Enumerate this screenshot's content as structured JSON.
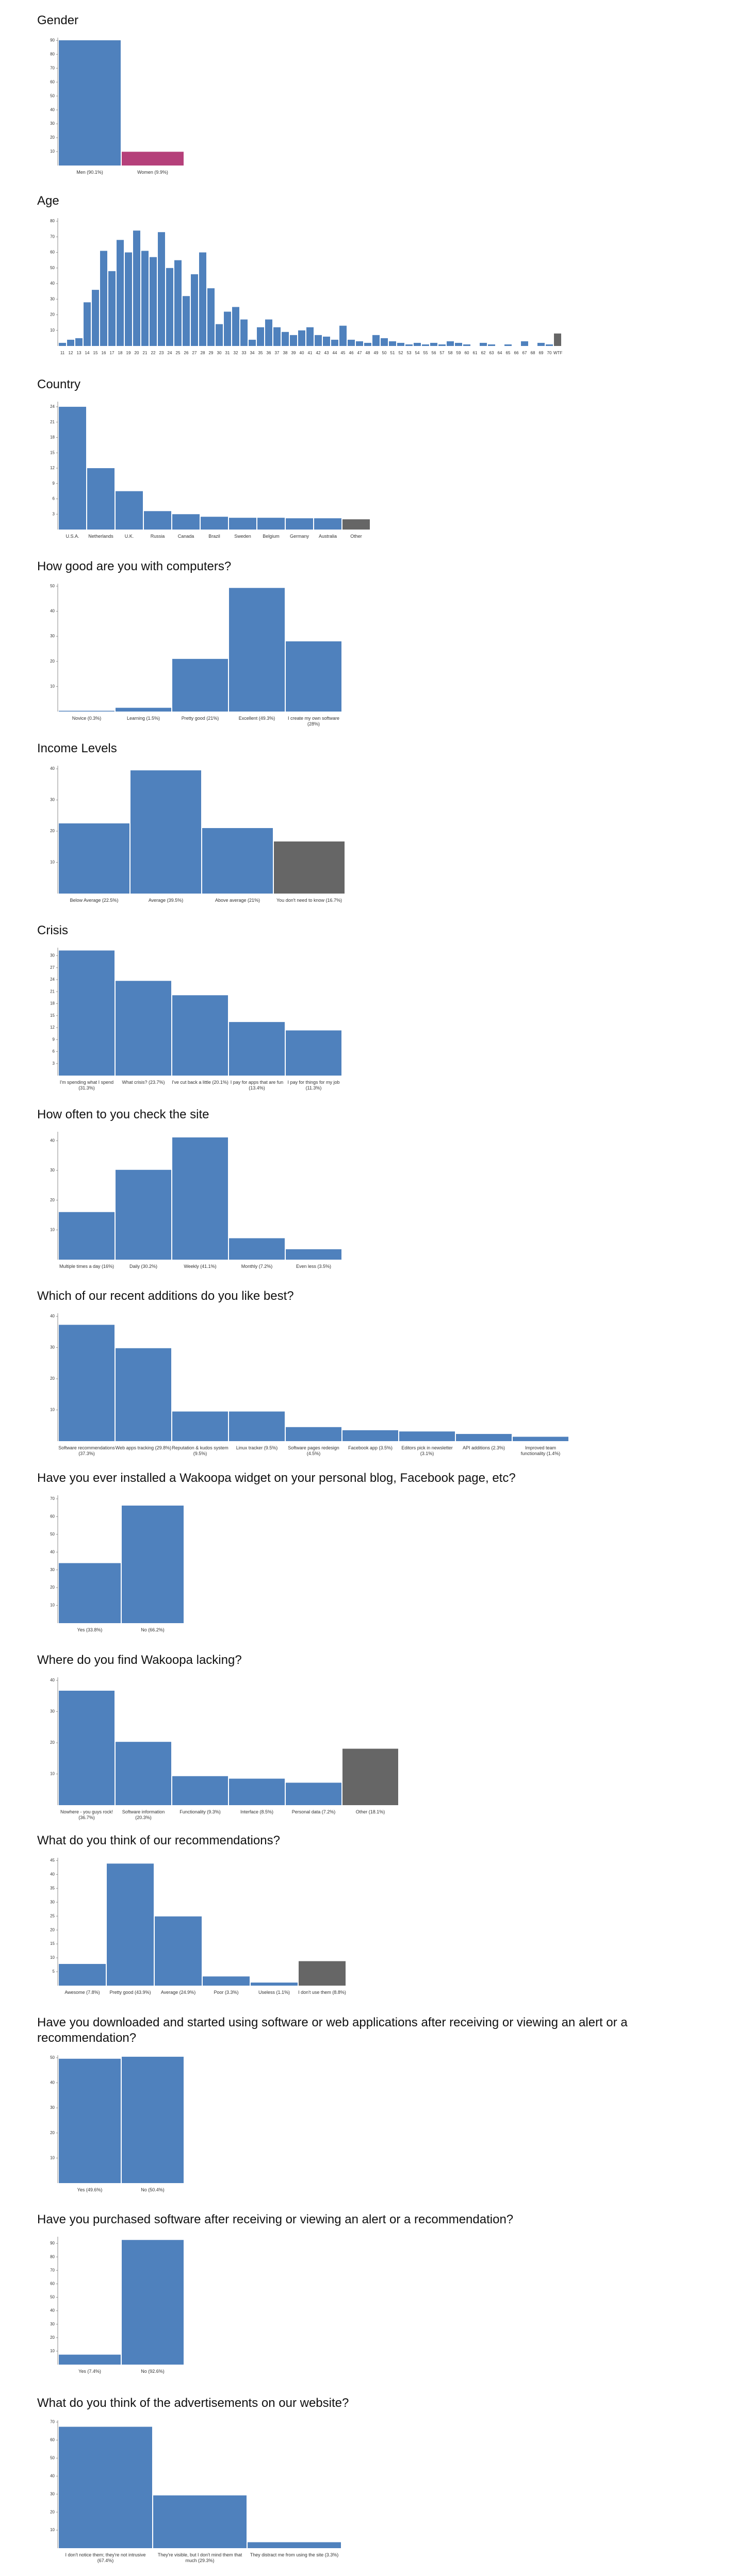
{
  "chart_data": [
    {
      "type": "bar",
      "title": "Gender",
      "categories": [
        "Men (90.1%)",
        "Women (9.9%)"
      ],
      "values": [
        90.1,
        9.9
      ],
      "colors": [
        "#4f81bd",
        "#b5407a"
      ],
      "ylim": [
        0,
        92
      ],
      "yticks": [
        10,
        20,
        30,
        40,
        50,
        60,
        70,
        80,
        90
      ]
    },
    {
      "type": "bar",
      "title": "Age",
      "categories": [
        "11",
        "12",
        "13",
        "14",
        "15",
        "16",
        "17",
        "18",
        "19",
        "20",
        "21",
        "22",
        "23",
        "24",
        "25",
        "26",
        "27",
        "28",
        "29",
        "30",
        "31",
        "32",
        "33",
        "34",
        "35",
        "36",
        "37",
        "38",
        "39",
        "40",
        "41",
        "42",
        "43",
        "44",
        "45",
        "46",
        "47",
        "48",
        "49",
        "50",
        "51",
        "52",
        "53",
        "54",
        "55",
        "56",
        "57",
        "58",
        "59",
        "60",
        "61",
        "62",
        "63",
        "64",
        "65",
        "66",
        "67",
        "68",
        "69",
        "70",
        "WTF"
      ],
      "values": [
        2,
        4,
        5,
        28,
        36,
        61,
        48,
        68,
        60,
        74,
        61,
        57,
        73,
        50,
        55,
        32,
        46,
        60,
        37,
        14,
        22,
        25,
        17,
        4,
        12,
        17,
        12,
        9,
        7,
        10,
        12,
        7,
        6,
        4,
        13,
        4,
        3,
        2,
        7,
        5,
        3,
        2,
        1,
        2,
        1,
        2,
        1,
        3,
        2,
        1,
        0,
        2,
        1,
        0,
        1,
        0,
        3,
        0,
        2,
        1,
        8
      ],
      "colors": [
        "#4f81bd",
        "#4f81bd",
        "#4f81bd",
        "#4f81bd",
        "#4f81bd",
        "#4f81bd",
        "#4f81bd",
        "#4f81bd",
        "#4f81bd",
        "#4f81bd",
        "#4f81bd",
        "#4f81bd",
        "#4f81bd",
        "#4f81bd",
        "#4f81bd",
        "#4f81bd",
        "#4f81bd",
        "#4f81bd",
        "#4f81bd",
        "#4f81bd",
        "#4f81bd",
        "#4f81bd",
        "#4f81bd",
        "#4f81bd",
        "#4f81bd",
        "#4f81bd",
        "#4f81bd",
        "#4f81bd",
        "#4f81bd",
        "#4f81bd",
        "#4f81bd",
        "#4f81bd",
        "#4f81bd",
        "#4f81bd",
        "#4f81bd",
        "#4f81bd",
        "#4f81bd",
        "#4f81bd",
        "#4f81bd",
        "#4f81bd",
        "#4f81bd",
        "#4f81bd",
        "#4f81bd",
        "#4f81bd",
        "#4f81bd",
        "#4f81bd",
        "#4f81bd",
        "#4f81bd",
        "#4f81bd",
        "#4f81bd",
        "#4f81bd",
        "#4f81bd",
        "#4f81bd",
        "#4f81bd",
        "#4f81bd",
        "#4f81bd",
        "#4f81bd",
        "#4f81bd",
        "#4f81bd",
        "#4f81bd",
        "#666666"
      ],
      "ylim": [
        0,
        82
      ],
      "yticks": [
        10,
        20,
        30,
        40,
        50,
        60,
        70,
        80
      ]
    },
    {
      "type": "bar",
      "title": "Country",
      "categories": [
        "U.S.A.",
        "Netherlands",
        "U.K.",
        "Russia",
        "Canada",
        "Brazil",
        "Sweden",
        "Belgium",
        "Germany",
        "Australia",
        "Other"
      ],
      "values": [
        24,
        12,
        7.5,
        3.6,
        3,
        2.5,
        2.3,
        2.3,
        2.2,
        2.2,
        2
      ],
      "colors": [
        "#4f81bd",
        "#4f81bd",
        "#4f81bd",
        "#4f81bd",
        "#4f81bd",
        "#4f81bd",
        "#4f81bd",
        "#4f81bd",
        "#4f81bd",
        "#4f81bd",
        "#666666"
      ],
      "ylim": [
        0,
        25
      ],
      "yticks": [
        3,
        6,
        9,
        12,
        15,
        18,
        21,
        24
      ]
    },
    {
      "type": "bar",
      "title": "How good are you with computers?",
      "categories": [
        "Novice (0.3%)",
        "Learning (1.5%)",
        "Pretty good (21%)",
        "Excellent (49.3%)",
        "I create my own software (28%)"
      ],
      "values": [
        0.3,
        1.5,
        21,
        49.3,
        28
      ],
      "colors": [
        "#4f81bd",
        "#4f81bd",
        "#4f81bd",
        "#4f81bd",
        "#4f81bd"
      ],
      "ylim": [
        0,
        51
      ],
      "yticks": [
        10,
        20,
        30,
        40,
        50
      ]
    },
    {
      "type": "bar",
      "title": "Income Levels",
      "categories": [
        "Below Average (22.5%)",
        "Average (39.5%)",
        "Above average (21%)",
        "You don't need to know (16.7%)"
      ],
      "values": [
        22.5,
        39.5,
        21,
        16.7
      ],
      "colors": [
        "#4f81bd",
        "#4f81bd",
        "#4f81bd",
        "#666666"
      ],
      "ylim": [
        0,
        41
      ],
      "yticks": [
        10,
        20,
        30,
        40
      ]
    },
    {
      "type": "bar",
      "title": "Crisis",
      "categories": [
        "I'm spending what I spend (31.3%)",
        "What crisis? (23.7%)",
        "I've cut back a little (20.1%)",
        "I pay for apps that are fun (13.4%)",
        "I pay for things for my job (11.3%)"
      ],
      "values": [
        31.3,
        23.7,
        20.1,
        13.4,
        11.3
      ],
      "colors": [
        "#4f81bd",
        "#4f81bd",
        "#4f81bd",
        "#4f81bd",
        "#4f81bd"
      ],
      "ylim": [
        0,
        32
      ],
      "yticks": [
        3,
        6,
        9,
        12,
        15,
        18,
        21,
        24,
        27,
        30
      ]
    },
    {
      "type": "bar",
      "title": "How often to you check the site",
      "categories": [
        "Multiple times a day (16%)",
        "Daily (30.2%)",
        "Weekly (41.1%)",
        "Monthly (7.2%)",
        "Even less (3.5%)"
      ],
      "values": [
        16,
        30.2,
        41.1,
        7.2,
        3.5
      ],
      "colors": [
        "#4f81bd",
        "#4f81bd",
        "#4f81bd",
        "#4f81bd",
        "#4f81bd"
      ],
      "ylim": [
        0,
        43
      ],
      "yticks": [
        10,
        20,
        30,
        40
      ]
    },
    {
      "type": "bar",
      "title": "Which of our recent additions do you like best?",
      "categories": [
        "Software recommendations (37.3%)",
        "Web apps tracking (29.8%)",
        "Reputation & kudos system (9.5%)",
        "Linux tracker (9.5%)",
        "Software pages redesign (4.5%)",
        "Facebook app (3.5%)",
        "Editors pick in newsletter (3.1%)",
        "API additions (2.3%)",
        "Improved team functionality (1.4%)"
      ],
      "values": [
        37.3,
        29.8,
        9.5,
        9.5,
        4.5,
        3.5,
        3.1,
        2.3,
        1.4
      ],
      "colors": [
        "#4f81bd",
        "#4f81bd",
        "#4f81bd",
        "#4f81bd",
        "#4f81bd",
        "#4f81bd",
        "#4f81bd",
        "#4f81bd",
        "#4f81bd"
      ],
      "ylim": [
        0,
        41
      ],
      "yticks": [
        10,
        20,
        30,
        40
      ]
    },
    {
      "type": "bar",
      "title": "Have you ever installed a Wakoopa widget on your personal blog, Facebook page, etc?",
      "categories": [
        "Yes (33.8%)",
        "No (66.2%)"
      ],
      "values": [
        33.8,
        66.2
      ],
      "colors": [
        "#4f81bd",
        "#4f81bd"
      ],
      "ylim": [
        0,
        72
      ],
      "yticks": [
        10,
        20,
        30,
        40,
        50,
        60,
        70
      ]
    },
    {
      "type": "bar",
      "title": "Where do you find Wakoopa lacking?",
      "categories": [
        "Nowhere - you guys rock! (36.7%)",
        "Software information (20.3%)",
        "Functionality (9.3%)",
        "Interface (8.5%)",
        "Personal data (7.2%)",
        "Other (18.1%)"
      ],
      "values": [
        36.7,
        20.3,
        9.3,
        8.5,
        7.2,
        18.1
      ],
      "colors": [
        "#4f81bd",
        "#4f81bd",
        "#4f81bd",
        "#4f81bd",
        "#4f81bd",
        "#666666"
      ],
      "ylim": [
        0,
        41
      ],
      "yticks": [
        10,
        20,
        30,
        40
      ]
    },
    {
      "type": "bar",
      "title": "What do you think of our recommendations?",
      "categories": [
        "Awesome (7.8%)",
        "Pretty good (43.9%)",
        "Average (24.9%)",
        "Poor (3.3%)",
        "Useless (1.1%)",
        "I don't use them (8.8%)"
      ],
      "values": [
        7.8,
        43.9,
        24.9,
        3.3,
        1.1,
        8.8
      ],
      "colors": [
        "#4f81bd",
        "#4f81bd",
        "#4f81bd",
        "#4f81bd",
        "#4f81bd",
        "#666666"
      ],
      "ylim": [
        0,
        46
      ],
      "yticks": [
        5,
        10,
        15,
        20,
        25,
        30,
        35,
        40,
        45
      ]
    },
    {
      "type": "bar",
      "title": "Have you downloaded and started using software or web applications after receiving or viewing an alert or a recommendation?",
      "categories": [
        "Yes (49.6%)",
        "No (50.4%)"
      ],
      "values": [
        49.6,
        50.4
      ],
      "colors": [
        "#4f81bd",
        "#4f81bd"
      ],
      "ylim": [
        0,
        51
      ],
      "yticks": [
        10,
        20,
        30,
        40,
        50
      ]
    },
    {
      "type": "bar",
      "title": "Have you purchased software after receiving or viewing an alert or a recommendation?",
      "categories": [
        "Yes (7.4%)",
        "No (92.6%)"
      ],
      "values": [
        7.4,
        92.6
      ],
      "colors": [
        "#4f81bd",
        "#4f81bd"
      ],
      "ylim": [
        0,
        95
      ],
      "yticks": [
        10,
        20,
        30,
        40,
        50,
        60,
        70,
        80,
        90
      ]
    },
    {
      "type": "bar",
      "title": "What do you think of the advertisements on our website?",
      "categories": [
        "I don't notice them; they're not intrusive (67.4%)",
        "They're visible, but I don't mind them that much (29.3%)",
        "They distract me from using the site (3.3%)"
      ],
      "values": [
        67.4,
        29.3,
        3.3
      ],
      "colors": [
        "#4f81bd",
        "#4f81bd",
        "#4f81bd"
      ],
      "ylim": [
        0,
        71
      ],
      "yticks": [
        10,
        20,
        30,
        40,
        50,
        60,
        70
      ]
    }
  ]
}
